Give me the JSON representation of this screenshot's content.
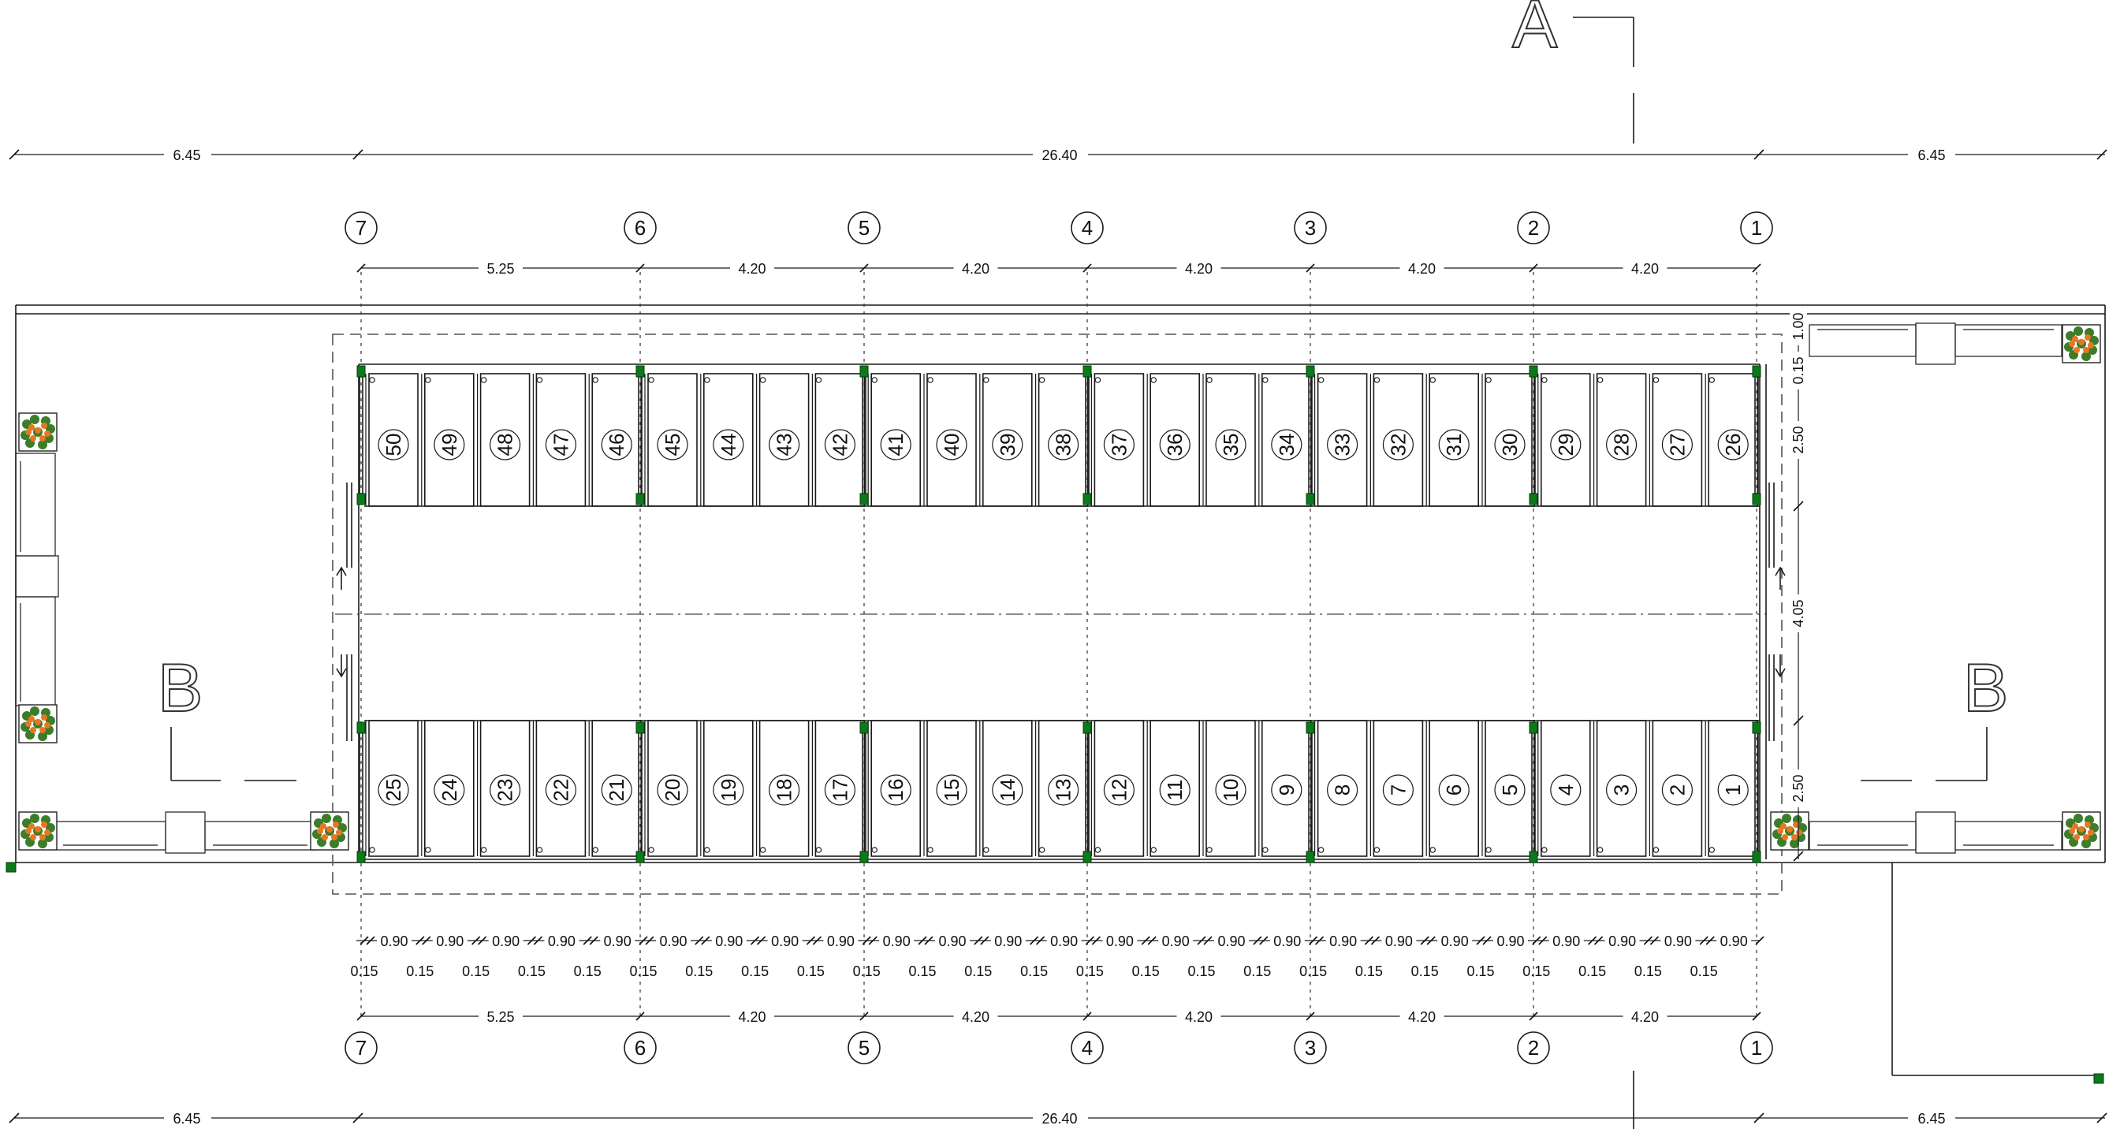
{
  "overall_dimensions": {
    "left": "6.45",
    "center": "26.40",
    "right": "6.45"
  },
  "grid_axes": [
    "7",
    "6",
    "5",
    "4",
    "3",
    "2",
    "1"
  ],
  "bay_dimensions": [
    "5.25",
    "4.20",
    "4.20",
    "4.20",
    "4.20",
    "4.20"
  ],
  "vertical_dimensions": [
    "1.00",
    "0.15",
    "2.50",
    "4.05",
    "2.50"
  ],
  "stall_width": "0.90",
  "stall_gap": "0.15",
  "section_labels": {
    "a": "A",
    "b": "B"
  },
  "top_row_numbers": [
    "50",
    "49",
    "48",
    "47",
    "46",
    "45",
    "44",
    "43",
    "42",
    "41",
    "40",
    "39",
    "38",
    "37",
    "36",
    "35",
    "34",
    "33",
    "32",
    "31",
    "30",
    "29",
    "28",
    "27",
    "26"
  ],
  "bottom_row_numbers": [
    "25",
    "24",
    "23",
    "22",
    "21",
    "20",
    "19",
    "18",
    "17",
    "16",
    "15",
    "14",
    "13",
    "12",
    "11",
    "10",
    "9",
    "8",
    "7",
    "6",
    "5",
    "4",
    "3",
    "2",
    "1"
  ],
  "colors": {
    "column": "#0a7a1a",
    "plant_leaf": "#3b7d2a",
    "plant_flower": "#e87722"
  }
}
